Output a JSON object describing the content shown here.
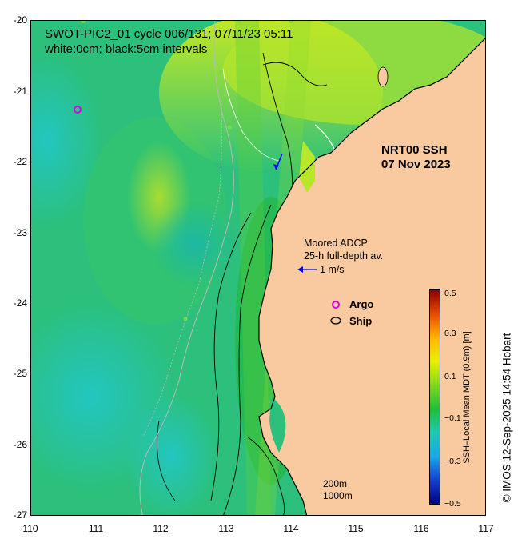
{
  "map": {
    "title_line1": "SWOT-PIC2_01 cycle 006/131; 07/11/23 05:11",
    "title_line2": "white:0cm; black:5cm intervals",
    "product_label_line1": "NRT00 SSH",
    "product_label_line2": "07 Nov 2023",
    "adcp_label_line1": "Moored ADCP",
    "adcp_label_line2": "25-h full-depth av.",
    "adcp_scale_label": "1 m/s",
    "legend_argo_label": "Argo",
    "legend_ship_label": "Ship",
    "depth_contour_200": "200m",
    "depth_contour_1000": "1000m",
    "y_ticks": [
      "-20",
      "-21",
      "-22",
      "-23",
      "-24",
      "-25",
      "-26",
      "-27"
    ],
    "x_ticks": [
      "110",
      "111",
      "112",
      "113",
      "114",
      "115",
      "116",
      "117"
    ],
    "colors": {
      "land": "#f9c9a0",
      "argo_marker": "#e100e1",
      "arrow": "#0000ff"
    }
  },
  "colorbar": {
    "label": "SSH–Local Mean MDT (0.9m) [m]",
    "ticks": [
      "0.5",
      "0.3",
      "0.1",
      "−0.1",
      "−0.3",
      "−0.5"
    ],
    "range": [
      -0.5,
      0.5
    ],
    "colors_top_to_bottom": [
      "#8b0000",
      "#e84a00",
      "#ffb300",
      "#e8f000",
      "#7fd61e",
      "#1fbf3a",
      "#1ec8b0",
      "#1aa8e6",
      "#1640d0",
      "#00007f"
    ]
  },
  "credit": "© IMOS 12-Sep-2025 14:54 Hobart"
}
